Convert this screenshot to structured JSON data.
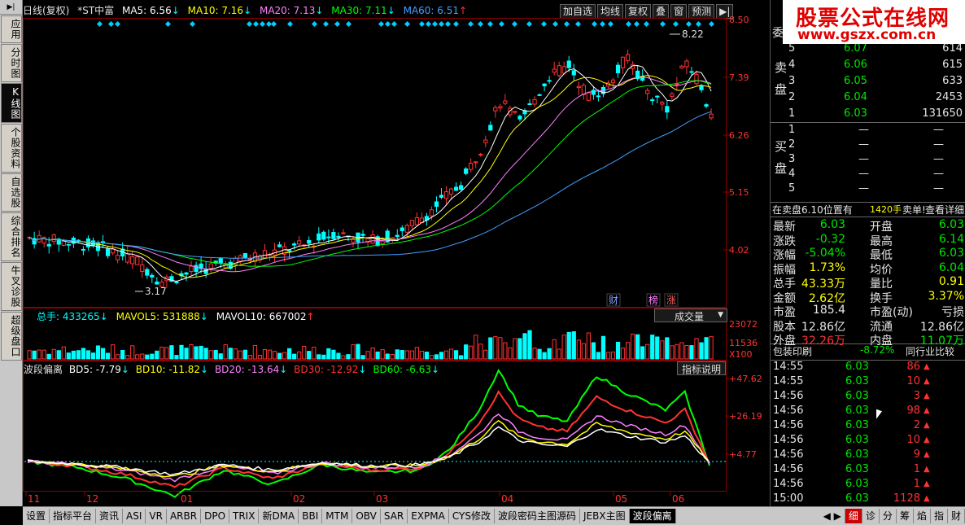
{
  "left_nav": {
    "top_icon": "▶|",
    "items": [
      {
        "label": "应用",
        "active": false
      },
      {
        "label": "分时图",
        "active": false
      },
      {
        "label": "K线图",
        "active": true
      },
      {
        "label": "个股资料",
        "active": false
      },
      {
        "label": "自选股",
        "active": false
      },
      {
        "label": "综合排名",
        "active": false
      },
      {
        "label": "牛叉诊股",
        "active": false
      },
      {
        "label": "超级盘口",
        "active": false
      }
    ]
  },
  "chart_header": {
    "period": "日线(复权)",
    "stock": "*ST中富",
    "ma5": "MA5: 6.56",
    "ma5_arrow": "↓",
    "ma10": "MA10: 7.16",
    "ma10_arrow": "↓",
    "ma20": "MA20: 7.13",
    "ma20_arrow": "↓",
    "ma30": "MA30: 7.11",
    "ma30_arrow": "↓",
    "ma60": "MA60: 6.51",
    "ma60_arrow": "↑"
  },
  "toolbar": {
    "add_watch": "加自选",
    "ma_line": "均线",
    "restore": "复权",
    "overlay": "叠",
    "window": "窗",
    "forecast": "预测",
    "expand_icon": "▶|"
  },
  "price_axis": [
    "8.50",
    "7.39",
    "6.26",
    "5.15",
    "4.02"
  ],
  "price_annotations": {
    "high": "8.22",
    "low": "3.17"
  },
  "event_badges": [
    "财",
    "榜",
    "涨"
  ],
  "volume_header": {
    "total": "总手: 433265",
    "total_arrow": "↓",
    "mavol5": "MAVOL5: 531888",
    "mavol5_arrow": "↓",
    "mavol10": "MAVOL10: 667002",
    "mavol10_arrow": "↑",
    "selector": "成交量",
    "selector_icon": "▼"
  },
  "volume_axis": [
    "23072",
    "11536",
    "X100"
  ],
  "indicator_header": {
    "name": "波段偏离",
    "bd5": "BD5: -7.79",
    "bd5_arrow": "↓",
    "bd10": "BD10: -11.82",
    "bd10_arrow": "↓",
    "bd20": "BD20: -13.64",
    "bd20_arrow": "↓",
    "bd30": "BD30: -12.92",
    "bd30_arrow": "↓",
    "bd60": "BD60: -6.63",
    "bd60_arrow": "↓",
    "help": "指标说明"
  },
  "indicator_axis": [
    "+47.62",
    "+26.19",
    "+4.77"
  ],
  "date_axis": [
    "11",
    "12",
    "01",
    "02",
    "03",
    "04",
    "05",
    "06"
  ],
  "order_book": {
    "sell_label": "卖盘",
    "buy_label": "买盘",
    "wei_label": "委",
    "sell": [
      {
        "level": "5",
        "price": "6.07",
        "volume": "614"
      },
      {
        "level": "4",
        "price": "6.06",
        "volume": "615"
      },
      {
        "level": "3",
        "price": "6.05",
        "volume": "633"
      },
      {
        "level": "2",
        "price": "6.04",
        "volume": "2453"
      },
      {
        "level": "1",
        "price": "6.03",
        "volume": "131650"
      }
    ],
    "buy": [
      {
        "level": "1",
        "price": "—",
        "volume": "—"
      },
      {
        "level": "2",
        "price": "—",
        "volume": "—"
      },
      {
        "level": "3",
        "price": "—",
        "volume": "—"
      },
      {
        "level": "4",
        "price": "—",
        "volume": "—"
      },
      {
        "level": "5",
        "price": "—",
        "volume": "—"
      }
    ]
  },
  "sell_info": {
    "text": "在卖盘6.10位置有",
    "volume": "1420手",
    "action": "卖单!",
    "detail": "查看详细"
  },
  "quote": [
    {
      "l1": "最新",
      "v1": "6.03",
      "c1": "green",
      "l2": "开盘",
      "v2": "6.03",
      "c2": "green"
    },
    {
      "l1": "涨跌",
      "v1": "-0.32",
      "c1": "green",
      "l2": "最高",
      "v2": "6.14",
      "c2": "green"
    },
    {
      "l1": "涨幅",
      "v1": "-5.04%",
      "c1": "green",
      "l2": "最低",
      "v2": "6.03",
      "c2": "green"
    },
    {
      "l1": "振幅",
      "v1": "1.73%",
      "c1": "yellow",
      "l2": "均价",
      "v2": "6.04",
      "c2": "green"
    },
    {
      "l1": "总手",
      "v1": "43.33万",
      "c1": "yellow",
      "l2": "量比",
      "v2": "0.91",
      "c2": "yellow"
    },
    {
      "l1": "金额",
      "v1": "2.62亿",
      "c1": "yellow",
      "l2": "换手",
      "v2": "3.37%",
      "c2": "yellow"
    },
    {
      "l1": "市盈",
      "v1": "185.4",
      "c1": "white",
      "l2": "市盈(动)",
      "v2": "亏损",
      "c2": "white"
    },
    {
      "l1": "股本",
      "v1": "12.86亿",
      "c1": "white",
      "l2": "流通",
      "v2": "12.86亿",
      "c2": "white"
    },
    {
      "l1": "外盘",
      "v1": "32.26万",
      "c1": "red",
      "l2": "内盘",
      "v2": "11.07万",
      "c2": "green"
    }
  ],
  "industry": {
    "name": "包装印刷",
    "change": "-8.72%",
    "compare": "同行业比较"
  },
  "ticks": [
    {
      "time": "14:55",
      "price": "6.03",
      "vol": "86"
    },
    {
      "time": "14:55",
      "price": "6.03",
      "vol": "10"
    },
    {
      "time": "14:56",
      "price": "6.03",
      "vol": "3"
    },
    {
      "time": "14:56",
      "price": "6.03",
      "vol": "98"
    },
    {
      "time": "14:56",
      "price": "6.03",
      "vol": "2"
    },
    {
      "time": "14:56",
      "price": "6.03",
      "vol": "10"
    },
    {
      "time": "14:56",
      "price": "6.03",
      "vol": "9"
    },
    {
      "time": "14:56",
      "price": "6.03",
      "vol": "1"
    },
    {
      "time": "14:56",
      "price": "6.03",
      "vol": "1"
    },
    {
      "time": "15:00",
      "price": "6.03",
      "vol": "1128"
    }
  ],
  "bottom_tabs": [
    "设置",
    "指标平台",
    "资讯",
    "ASI",
    "VR",
    "ARBR",
    "DPO",
    "TRIX",
    "新DMA",
    "BBI",
    "MTM",
    "OBV",
    "SAR",
    "EXPMA",
    "CYS修改",
    "波段密码主图源码",
    "JEBX主图",
    "波段偏离"
  ],
  "right_tabs": [
    "细",
    "诊",
    "分",
    "筹",
    "焰",
    "指",
    "财"
  ],
  "logo": {
    "title": "股票公式在线网",
    "url": "www.gszx.com.cn"
  },
  "colors": {
    "up": "#ff3333",
    "down": "#00ffff",
    "ma5": "#ffffff",
    "ma10": "#ffff00",
    "ma20": "#ff80ff",
    "ma30": "#00ff00",
    "ma60": "#40a0ff"
  }
}
